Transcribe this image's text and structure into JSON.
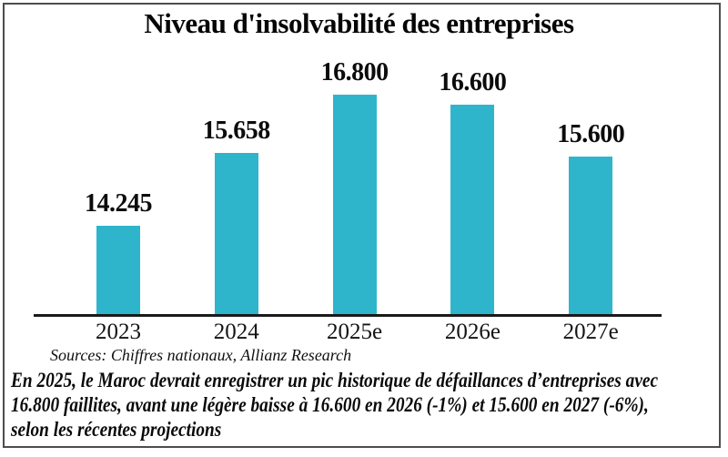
{
  "chart_data": {
    "type": "bar",
    "title": "Niveau d'insolvabilité des entreprises",
    "categories": [
      "2023",
      "2024",
      "2025e",
      "2026e",
      "2027e"
    ],
    "values": [
      14245,
      15658,
      16800,
      16600,
      15600
    ],
    "value_labels": [
      "14.245",
      "15.658",
      "16.800",
      "16.600",
      "15.600"
    ],
    "xlabel": "",
    "ylabel": "",
    "ylim": [
      12500,
      17000
    ],
    "grid": false,
    "legend": false,
    "bar_color": "#2FB5CB",
    "axis_color": "#1A1A1A",
    "frame_border_color": "#4D4D4D",
    "text_color": "#0B0B0B"
  },
  "sources": "Sources: Chiffres nationaux, Allianz Research",
  "caption": {
    "lines": [
      "En 2025, le Maroc devrait enregistrer un pic historique de défaillances d’entreprises avec",
      "16.800 faillites, avant une légère baisse à 16.600 en 2026 (-1%) et 15.600 en 2027 (-6%),",
      "selon les récentes projections"
    ]
  }
}
